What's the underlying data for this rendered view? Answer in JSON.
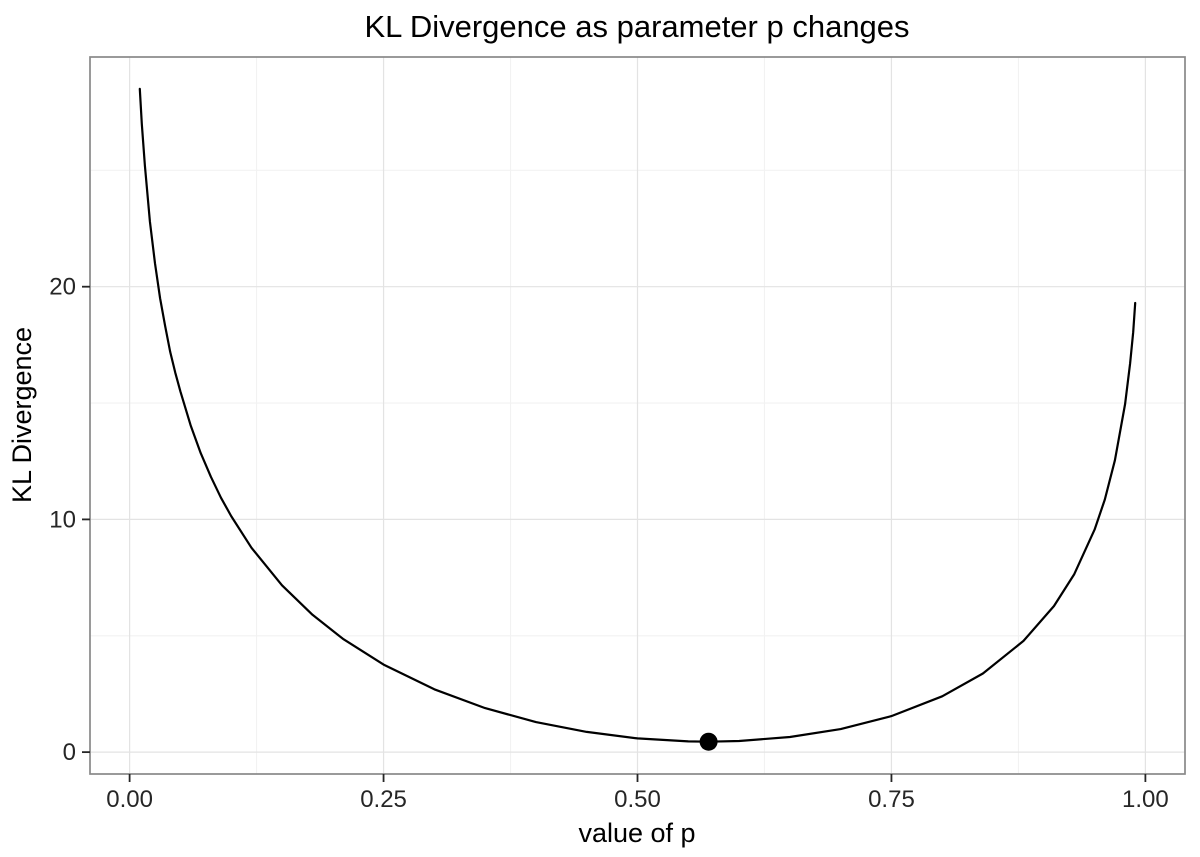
{
  "chart_data": {
    "type": "line",
    "title": "KL Divergence as parameter p changes",
    "xlabel": "value of p",
    "ylabel": "KL Divergence",
    "xlim": [
      -0.039,
      1.039
    ],
    "ylim": [
      -0.94,
      29.87
    ],
    "x_ticks": [
      0.0,
      0.25,
      0.5,
      0.75,
      1.0
    ],
    "x_tick_labels": [
      "0.00",
      "0.25",
      "0.50",
      "0.75",
      "1.00"
    ],
    "x_minor_ticks": [
      0.125,
      0.375,
      0.625,
      0.875
    ],
    "y_ticks": [
      0,
      10,
      20
    ],
    "y_tick_labels": [
      "0",
      "10",
      "20"
    ],
    "y_minor_ticks": [
      5,
      15,
      25
    ],
    "grid": true,
    "legend": "none",
    "series": [
      {
        "name": "kl-divergence-curve",
        "color": "#000000",
        "x": [
          0.01,
          0.012,
          0.015,
          0.02,
          0.025,
          0.03,
          0.035,
          0.04,
          0.045,
          0.05,
          0.06,
          0.07,
          0.08,
          0.09,
          0.1,
          0.12,
          0.15,
          0.18,
          0.21,
          0.25,
          0.3,
          0.35,
          0.4,
          0.45,
          0.5,
          0.55,
          0.57,
          0.6,
          0.65,
          0.7,
          0.75,
          0.8,
          0.84,
          0.88,
          0.91,
          0.93,
          0.95,
          0.96,
          0.97,
          0.98,
          0.985,
          0.988,
          0.99
        ],
        "y": [
          28.5,
          27.0,
          25.2,
          22.8,
          21.0,
          19.5,
          18.3,
          17.2,
          16.3,
          15.5,
          14.05,
          12.85,
          11.83,
          10.93,
          10.14,
          8.78,
          7.17,
          5.9,
          4.87,
          3.76,
          2.7,
          1.89,
          1.29,
          0.87,
          0.59,
          0.46,
          0.45,
          0.48,
          0.65,
          0.99,
          1.55,
          2.4,
          3.38,
          4.78,
          6.28,
          7.65,
          9.56,
          10.85,
          12.54,
          14.96,
          16.7,
          18.05,
          19.3
        ]
      }
    ],
    "highlight_point": {
      "x": 0.57,
      "y": 0.45,
      "description": "minimum of KL divergence"
    },
    "colors": {
      "curve": "#000000",
      "point": "#000000",
      "panel_background": "#ffffff",
      "outer_background": "#ffffff",
      "panel_border": "#898989",
      "grid_major": "#e3e3e3",
      "grid_minor": "#f2f2f2",
      "tick_mark": "#262626",
      "tick_label": "#262626",
      "title_text": "#000000"
    }
  }
}
